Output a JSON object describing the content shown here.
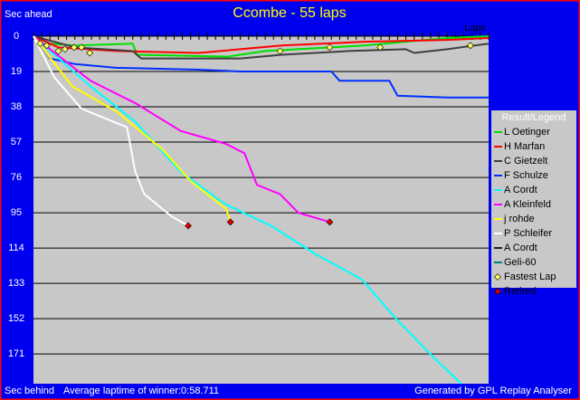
{
  "chart_data": {
    "type": "line",
    "title": "Ccombe - 55 laps",
    "y_label_top": "Sec ahead",
    "y_label_bottom": "Sec behind",
    "x_label": "Laps",
    "footnote_left": "Average laptime of winner:0:58.711",
    "footnote_right": "Generated by GPL Replay Analyser",
    "legend_title": "Result/Legend",
    "ylim": [
      0,
      187
    ],
    "yticks": [
      0,
      19,
      38,
      57,
      76,
      95,
      114,
      133,
      152,
      171
    ],
    "xlim": [
      0,
      55
    ],
    "xticks": [
      0,
      1,
      2,
      3,
      4,
      5,
      6,
      7,
      8,
      9,
      10,
      11,
      12,
      13,
      14,
      15,
      16,
      17,
      18,
      19,
      20,
      21,
      22,
      23,
      24,
      25,
      26,
      27,
      28,
      29,
      30,
      31,
      32,
      33,
      34,
      35,
      36,
      37,
      38,
      39,
      40,
      41,
      42,
      43,
      44,
      45,
      46,
      47,
      48,
      49,
      50,
      51,
      52,
      53,
      54,
      55
    ],
    "grid": true,
    "series": [
      {
        "name": "L Oetinger",
        "color": "#00e000",
        "x": [
          0,
          2,
          5,
          12,
          12.5,
          23.5,
          28,
          40,
          50,
          55
        ],
        "values": [
          0,
          4,
          5,
          4,
          10,
          11,
          8,
          5,
          1,
          0
        ]
      },
      {
        "name": "H Marfan",
        "color": "#ff0000",
        "x": [
          0,
          3,
          10,
          20,
          30,
          40,
          50,
          55
        ],
        "values": [
          0,
          6,
          8,
          9,
          5,
          3,
          2,
          1
        ]
      },
      {
        "name": "C Gietzelt",
        "color": "#404040",
        "x": [
          0,
          5,
          12,
          13,
          25,
          30,
          38,
          45,
          46,
          50,
          55
        ],
        "values": [
          0,
          6,
          8,
          12,
          12,
          10,
          8,
          7,
          9,
          7,
          4
        ]
      },
      {
        "name": "F Schulze",
        "color": "#0030ff",
        "x": [
          0,
          2,
          5,
          10,
          20,
          25,
          36,
          37,
          43,
          44,
          50,
          55
        ],
        "values": [
          0,
          12,
          15,
          17,
          18,
          19,
          19,
          24,
          24,
          32,
          33,
          33
        ]
      },
      {
        "name": "A Cordt",
        "color": "#00ffff",
        "x": [
          0,
          6.9,
          12.3,
          17.8,
          23,
          28.7,
          34,
          39.7,
          44,
          48.4,
          51.7
        ],
        "values": [
          0,
          27,
          46,
          73,
          90,
          102,
          117,
          131,
          153,
          173,
          187
        ]
      },
      {
        "name": "A Kleinfeld",
        "color": "#ff00ff",
        "x": [
          0,
          6.9,
          12.3,
          17.8,
          23.3,
          25.5,
          27,
          29.8,
          32,
          35.8
        ],
        "values": [
          0,
          24,
          36,
          51,
          58,
          63,
          80,
          85,
          95,
          100
        ]
      },
      {
        "name": "j rohde",
        "color": "#ffff00",
        "x": [
          0,
          4.7,
          10.2,
          15.6,
          19,
          23.3,
          23.8
        ],
        "values": [
          0,
          27,
          41,
          61,
          78,
          93,
          100
        ]
      },
      {
        "name": "P Schleifer",
        "color": "#ffffff",
        "x": [
          0,
          2.5,
          5.8,
          11.3,
          12.3,
          13.4,
          16.7,
          18.7
        ],
        "values": [
          0,
          22,
          39,
          49,
          73,
          85,
          97,
          102
        ]
      },
      {
        "name": "A Cordt",
        "color": "#202020",
        "x": [],
        "values": []
      },
      {
        "name": "Geli-60",
        "color": "#008080",
        "x": [],
        "values": []
      }
    ],
    "fastest_lap": {
      "name": "Fastest Lap",
      "color": "#ffff60",
      "x": [
        0.8,
        1.6,
        3,
        3.8,
        4.9,
        5.8,
        6.8,
        29.8,
        35.8,
        41.9,
        52.8
      ],
      "values": [
        4,
        5,
        8,
        7,
        6,
        6,
        9,
        8,
        6,
        6,
        5
      ]
    },
    "retired": {
      "name": "Retired",
      "color": "#e00000",
      "x": [
        18.7,
        23.8,
        35.8
      ],
      "values": [
        102,
        100,
        100
      ]
    }
  }
}
